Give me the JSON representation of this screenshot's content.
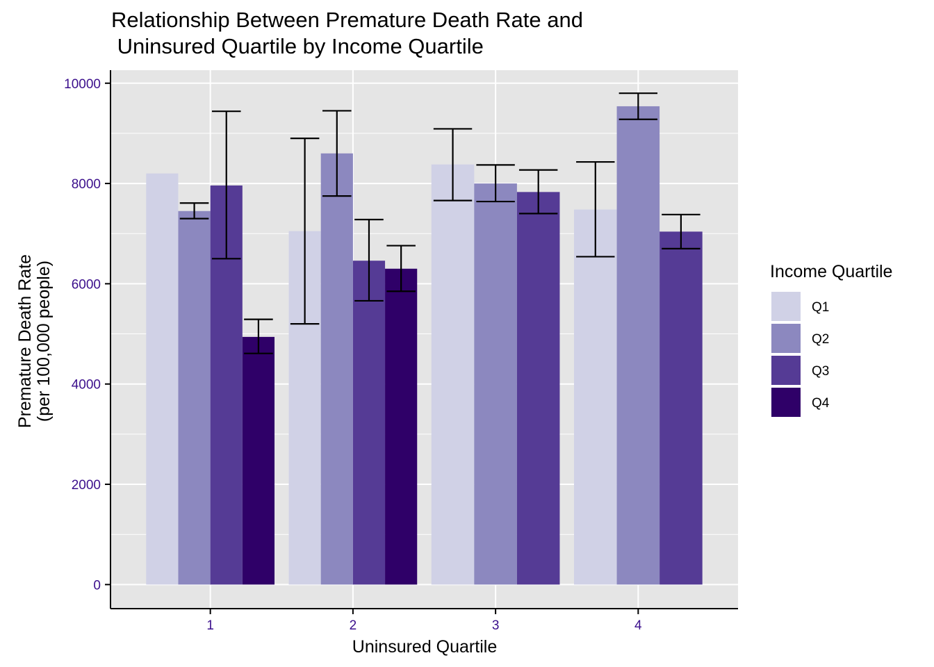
{
  "chart_data": {
    "type": "bar",
    "title": [
      "Relationship Between Premature Death Rate and",
      " Uninsured Quartile by Income Quartile"
    ],
    "xlabel": "Uninsured Quartile",
    "ylabel": [
      "Premature Death Rate",
      "(per 100,000 people)"
    ],
    "categories": [
      "1",
      "2",
      "3",
      "4"
    ],
    "ylim": [
      -480,
      10260
    ],
    "yticks": [
      0,
      2000,
      4000,
      6000,
      8000,
      10000
    ],
    "grid": true,
    "legend": {
      "title": "Income Quartile",
      "placement": "right"
    },
    "series": [
      {
        "name": "Q1",
        "color": "#d0d1e6",
        "values": [
          8200,
          7050,
          8380,
          7480
        ],
        "error_low": [
          null,
          5200,
          7660,
          6540
        ],
        "error_high": [
          null,
          8900,
          9090,
          8430
        ]
      },
      {
        "name": "Q2",
        "color": "#8c88bf",
        "values": [
          7450,
          8600,
          8000,
          9540
        ],
        "error_low": [
          7300,
          7750,
          7640,
          9280
        ],
        "error_high": [
          7610,
          9450,
          8370,
          9800
        ]
      },
      {
        "name": "Q3",
        "color": "#553b95",
        "values": [
          7960,
          6460,
          7830,
          7040
        ],
        "error_low": [
          6500,
          5660,
          7400,
          6700
        ],
        "error_high": [
          9440,
          7280,
          8270,
          7380
        ]
      },
      {
        "name": "Q4",
        "color": "#2f0068",
        "values": [
          4940,
          6300,
          null,
          null
        ],
        "error_low": [
          4610,
          5850,
          null,
          null
        ],
        "error_high": [
          5290,
          6760,
          null,
          null
        ]
      }
    ]
  }
}
